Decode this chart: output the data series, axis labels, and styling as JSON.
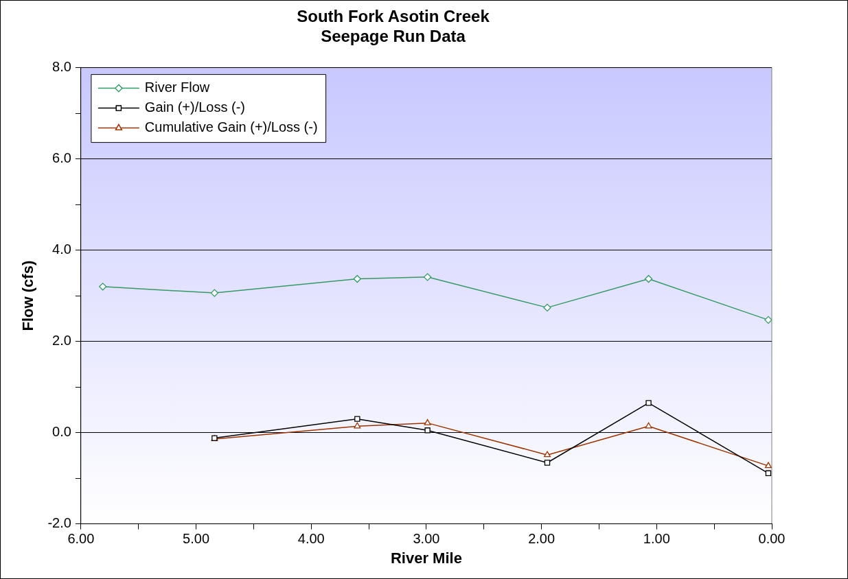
{
  "chart_data": {
    "type": "line",
    "title": "South Fork Asotin Creek\nSeepage Run Data",
    "xlabel": "River Mile",
    "ylabel": "Flow (cfs)",
    "xlim": [
      6,
      0
    ],
    "xticks": [
      {
        "value": 6,
        "label": "6.00"
      },
      {
        "value": 5.5,
        "label": null
      },
      {
        "value": 5,
        "label": "5.00"
      },
      {
        "value": 4.5,
        "label": null
      },
      {
        "value": 4,
        "label": "4.00"
      },
      {
        "value": 3.5,
        "label": null
      },
      {
        "value": 3,
        "label": "3.00"
      },
      {
        "value": 2.5,
        "label": null
      },
      {
        "value": 2,
        "label": "2.00"
      },
      {
        "value": 1.5,
        "label": null
      },
      {
        "value": 1,
        "label": "1.00"
      },
      {
        "value": 0.5,
        "label": null
      },
      {
        "value": 0,
        "label": "0.00"
      }
    ],
    "ylim": [
      -2,
      8
    ],
    "yticks": [
      {
        "value": -2,
        "label": "-2.0"
      },
      {
        "value": -1,
        "label": null
      },
      {
        "value": 0,
        "label": "0.0"
      },
      {
        "value": 1,
        "label": null
      },
      {
        "value": 2,
        "label": "2.0"
      },
      {
        "value": 3,
        "label": null
      },
      {
        "value": 4,
        "label": "4.0"
      },
      {
        "value": 5,
        "label": null
      },
      {
        "value": 6,
        "label": "6.0"
      },
      {
        "value": 7,
        "label": null
      },
      {
        "value": 8,
        "label": "8.0"
      }
    ],
    "grid": "y",
    "legend": "top left",
    "line_style": "solid",
    "series": [
      {
        "name": "River Flow",
        "color": "#339966",
        "marker": "diamond",
        "x": [
          5.81,
          4.84,
          3.6,
          2.99,
          1.95,
          1.07,
          0.03
        ],
        "values": [
          3.2,
          3.06,
          3.37,
          3.41,
          2.74,
          3.37,
          2.47
        ]
      },
      {
        "name": "Gain (+)/Loss (-)",
        "color": "#000000",
        "marker": "square",
        "x": [
          4.84,
          3.6,
          2.99,
          1.95,
          1.07,
          0.03
        ],
        "values": [
          -0.12,
          0.3,
          0.05,
          -0.66,
          0.65,
          -0.89
        ]
      },
      {
        "name": "Cumulative Gain (+)/Loss (-)",
        "color": "#993300",
        "marker": "triangle",
        "x": [
          4.84,
          3.6,
          2.99,
          1.95,
          1.07,
          0.03
        ],
        "values": [
          -0.14,
          0.14,
          0.21,
          -0.49,
          0.14,
          -0.73
        ]
      }
    ]
  }
}
